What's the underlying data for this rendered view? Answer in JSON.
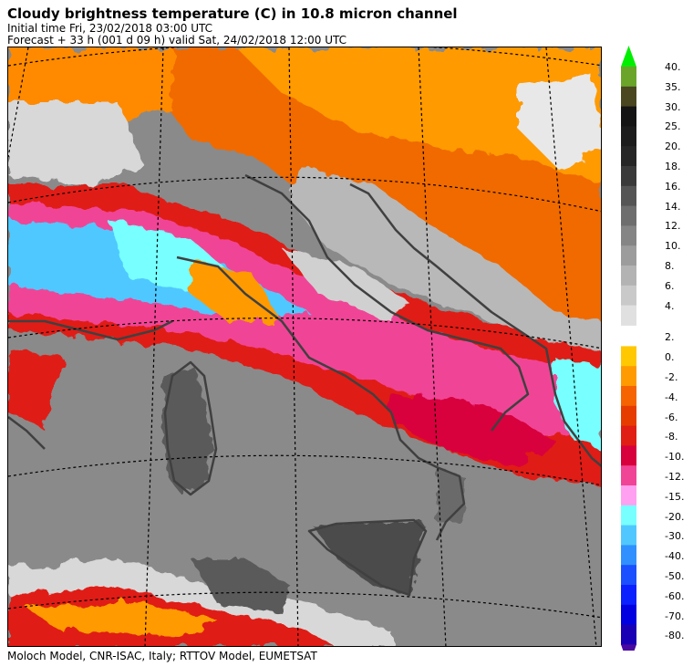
{
  "header": {
    "title": "Cloudy brightness temperature (C) in   10.8 micron channel",
    "initial_time": "Initial time  Fri, 23/02/2018  03:00 UTC",
    "forecast": "Forecast  +  33 h  (001 d 09 h)  valid Sat, 24/02/2018 12:00 UTC"
  },
  "footer": "Moloch Model, CNR-ISAC, Italy; RTTOV Model, EUMETSAT",
  "legend": {
    "top_arrow_color": "#00ee00",
    "bottom_arrow_color": "#4a0aa0",
    "warm_levels": [
      {
        "label": "40.",
        "color": "#6aa52a"
      },
      {
        "label": "35.",
        "color": "#4a4620"
      },
      {
        "label": "30.",
        "color": "#141414"
      },
      {
        "label": "25.",
        "color": "#1c1c1c"
      },
      {
        "label": "20.",
        "color": "#262626"
      },
      {
        "label": "18.",
        "color": "#3a3a3a"
      },
      {
        "label": "16.",
        "color": "#555555"
      },
      {
        "label": "14.",
        "color": "#6e6e6e"
      },
      {
        "label": "12.",
        "color": "#858585"
      },
      {
        "label": "10.",
        "color": "#9c9c9c"
      },
      {
        "label": "8.",
        "color": "#b3b3b3"
      },
      {
        "label": "6.",
        "color": "#c9c9c9"
      },
      {
        "label": "4.",
        "color": "#e0e0e0"
      }
    ],
    "cold_levels": [
      {
        "label": "2.",
        "color": "#ffc800"
      },
      {
        "label": "0.",
        "color": "#ff9a00"
      },
      {
        "label": "-2.",
        "color": "#f56400"
      },
      {
        "label": "-4.",
        "color": "#e63c00"
      },
      {
        "label": "-6.",
        "color": "#e01e14"
      },
      {
        "label": "-8.",
        "color": "#d8003c"
      },
      {
        "label": "-10.",
        "color": "#f04496"
      },
      {
        "label": "-12.",
        "color": "#ffa0f0"
      },
      {
        "label": "-15.",
        "color": "#78ffff"
      },
      {
        "label": "-20.",
        "color": "#50c8ff"
      },
      {
        "label": "-30.",
        "color": "#3090ff"
      },
      {
        "label": "-40.",
        "color": "#1a50ff"
      },
      {
        "label": "-50.",
        "color": "#0a20ff"
      },
      {
        "label": "-60.",
        "color": "#0000e0"
      },
      {
        "label": "-70.",
        "color": "#1a00b4"
      },
      {
        "label": "-80.",
        "color": null
      }
    ]
  }
}
